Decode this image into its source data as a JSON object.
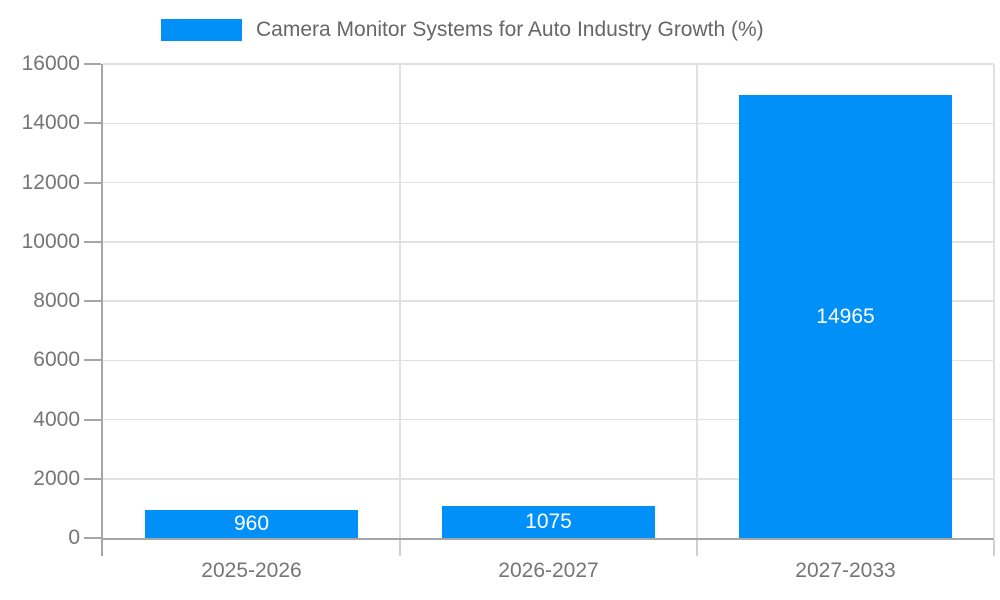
{
  "chart_data": {
    "type": "bar",
    "title": "Camera Monitor Systems for Auto Industry Growth (%)",
    "categories": [
      "2025-2026",
      "2026-2027",
      "2027-2033"
    ],
    "values": [
      960,
      1075,
      14965
    ],
    "value_labels": [
      "960",
      "1075",
      "14965"
    ],
    "ylim": [
      0,
      16000
    ],
    "yticks": [
      0,
      2000,
      4000,
      6000,
      8000,
      10000,
      12000,
      14000,
      16000
    ],
    "xlabel": "",
    "ylabel": "",
    "grid": true,
    "legend_position": "top",
    "colors": {
      "bar": "#0190F8",
      "value_label": "#FFFFFF",
      "grid": "#E1E1E1",
      "minor_tick": "#CFCFCF",
      "axis": "#A6A6A6",
      "tick_label": "#757575",
      "title": "#666666",
      "background": "#FFFFFF"
    }
  }
}
